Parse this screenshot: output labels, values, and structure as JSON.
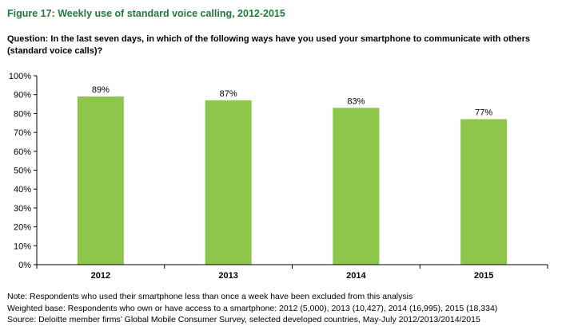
{
  "figure": {
    "title": "Figure 17: Weekly use of standard voice calling, 2012-2015",
    "question": "Question: In the last seven days, in which of the following ways have you used your smartphone to communicate with others (standard voice calls)?"
  },
  "chart_data": {
    "type": "bar",
    "categories": [
      "2012",
      "2013",
      "2014",
      "2015"
    ],
    "values": [
      89,
      87,
      83,
      77
    ],
    "value_labels": [
      "89%",
      "87%",
      "83%",
      "77%"
    ],
    "ylim": [
      0,
      100
    ],
    "yticks": [
      0,
      10,
      20,
      30,
      40,
      50,
      60,
      70,
      80,
      90,
      100
    ],
    "ytick_labels": [
      "0%",
      "10%",
      "20%",
      "30%",
      "40%",
      "50%",
      "60%",
      "70%",
      "80%",
      "90%",
      "100%"
    ],
    "xlabel": "",
    "ylabel": "",
    "grid": false,
    "legend": "none",
    "bar_color": "#8dc64a"
  },
  "notes": {
    "note": "Note: Respondents who used their smartphone less than once a week have been excluded from this analysis",
    "base": "Weighted base: Respondents who own or have access to a smartphone: 2012 (5,000), 2013 (10,427), 2014 (16,995), 2015 (18,334)",
    "source": "Source: Deloitte member firms’ Global Mobile Consumer Survey, selected developed countries, May-July 2012/2013/2014/2015"
  }
}
